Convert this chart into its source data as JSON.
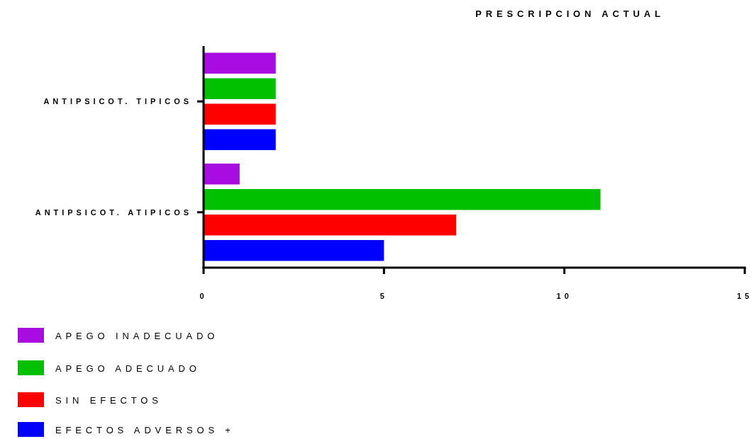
{
  "chart_data": {
    "type": "bar",
    "orientation": "horizontal",
    "title": "PRESCRIPCION ACTUAL",
    "categories": [
      "ANTIPSICOT. TIPICOS",
      "ANTIPSICOT. ATIPICOS"
    ],
    "series": [
      {
        "name": "APEGO INADECUADO",
        "color": "#a80ce0",
        "values": [
          2,
          1
        ]
      },
      {
        "name": "APEGO ADECUADO",
        "color": "#00c000",
        "values": [
          2,
          11
        ]
      },
      {
        "name": "SIN EFECTOS",
        "color": "#ff0000",
        "values": [
          2,
          7
        ]
      },
      {
        "name": "EFECTOS ADVERSOS +",
        "color": "#0000ff",
        "values": [
          2,
          5
        ]
      }
    ],
    "xlim": [
      0,
      15
    ],
    "xticks": [
      0,
      5,
      10,
      15
    ],
    "grid": false,
    "legend": "bottom left"
  }
}
